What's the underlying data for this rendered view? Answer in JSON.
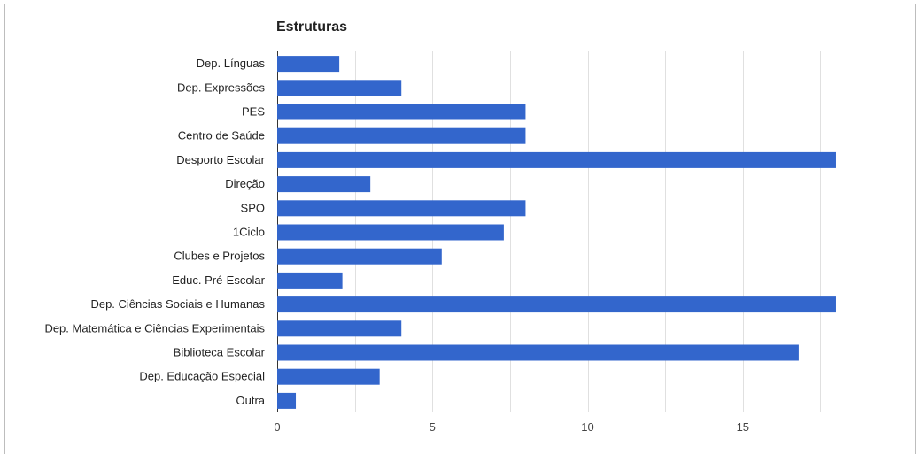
{
  "chart_data": {
    "type": "bar",
    "orientation": "horizontal",
    "title": "Estruturas",
    "xlabel": "",
    "ylabel": "",
    "categories": [
      "Dep. Línguas",
      "Dep. Expressões",
      "PES",
      "Centro de Saúde",
      "Desporto Escolar",
      "Direção",
      "SPO",
      "1Ciclo",
      "Clubes e Projetos",
      "Educ. Pré-Escolar",
      "Dep. Ciências Sociais e Humanas",
      "Dep. Matemática e Ciências Experimentais",
      "Biblioteca Escolar",
      "Dep. Educação Especial",
      "Outra"
    ],
    "values": [
      2,
      4,
      8,
      8,
      18,
      3,
      8,
      7.3,
      5.3,
      2.1,
      18,
      4,
      16.8,
      3.3,
      0.6
    ],
    "xlim": [
      0,
      18.4
    ],
    "xticks": [
      0,
      5,
      10,
      15
    ],
    "grid": true,
    "legend": "none",
    "bar_color": "#3366cc",
    "grid_color": "#e0e0e0",
    "baseline_color": "#333333"
  }
}
